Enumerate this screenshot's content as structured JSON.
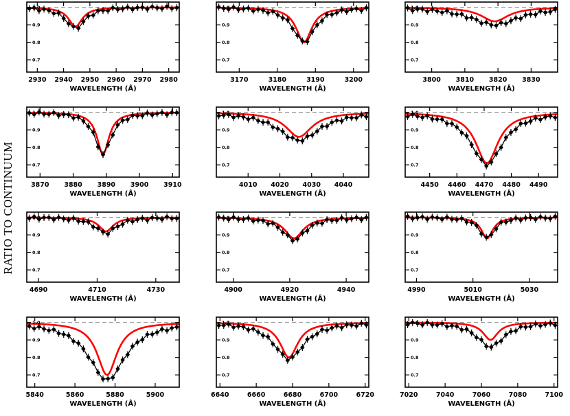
{
  "figure": {
    "ylabel": "RATIO TO CONTINUUM"
  },
  "chart_data": [
    {
      "type": "line",
      "xlabel": "WAVELENGTH (Å)",
      "xlim": [
        2926,
        2984
      ],
      "ylim": [
        0.63,
        1.03
      ],
      "xticks": [
        2930,
        2940,
        2950,
        2960,
        2970,
        2980
      ],
      "yticks": [
        0.7,
        0.8,
        0.9,
        1.0
      ],
      "ytick_labels": [
        "0.7",
        "0.8",
        "0.9",
        "1.0"
      ],
      "grid": false,
      "center": 2944.5,
      "model": {
        "depth": 0.11,
        "width": 3.2
      },
      "observed": {
        "depth": 0.12,
        "width": 4.5
      },
      "series": [
        {
          "color": "#000000",
          "style": "points"
        },
        {
          "color": "#ff0000",
          "style": "line"
        },
        {
          "color": "#888888",
          "style": "dashed",
          "y": 1.0
        }
      ]
    },
    {
      "type": "line",
      "xlabel": "WAVELENGTH (Å)",
      "xlim": [
        3164,
        3204
      ],
      "ylim": [
        0.63,
        1.03
      ],
      "xticks": [
        3170,
        3180,
        3190,
        3200
      ],
      "yticks": [
        0.7,
        0.8,
        0.9,
        1.0
      ],
      "ytick_labels": [
        "0.7",
        "0.8",
        "0.9",
        "1.0"
      ],
      "grid": false,
      "center": 3187,
      "model": {
        "depth": 0.2,
        "width": 2.5
      },
      "observed": {
        "depth": 0.2,
        "width": 3.5
      },
      "series": [
        {
          "color": "#000000",
          "style": "points"
        },
        {
          "color": "#ff0000",
          "style": "line"
        },
        {
          "color": "#888888",
          "style": "dashed",
          "y": 1.0
        }
      ]
    },
    {
      "type": "line",
      "xlabel": "WAVELENGTH (Å)",
      "xlim": [
        3792,
        3838
      ],
      "ylim": [
        0.63,
        1.03
      ],
      "xticks": [
        3800,
        3810,
        3820,
        3830
      ],
      "yticks": [
        0.7,
        0.8,
        0.9,
        1.0
      ],
      "ytick_labels": [
        "0.7",
        "0.8",
        "0.9",
        "1.0"
      ],
      "grid": false,
      "center": 3819,
      "model": {
        "depth": 0.08,
        "width": 5
      },
      "observed": {
        "depth": 0.1,
        "width": 9
      },
      "series": [
        {
          "color": "#000000",
          "style": "points"
        },
        {
          "color": "#ff0000",
          "style": "line"
        },
        {
          "color": "#888888",
          "style": "dashed",
          "y": 1.0
        }
      ]
    },
    {
      "type": "line",
      "xlabel": "WAVELENGTH (Å)",
      "xlim": [
        3866,
        3912
      ],
      "ylim": [
        0.63,
        1.03
      ],
      "xticks": [
        3870,
        3880,
        3890,
        3900,
        3910
      ],
      "yticks": [
        0.7,
        0.8,
        0.9,
        1.0
      ],
      "ytick_labels": [
        "0.7",
        "0.8",
        "0.9",
        "1.0"
      ],
      "grid": false,
      "center": 3889,
      "model": {
        "depth": 0.24,
        "width": 2.2
      },
      "observed": {
        "depth": 0.24,
        "width": 3
      },
      "series": [
        {
          "color": "#000000",
          "style": "points"
        },
        {
          "color": "#ff0000",
          "style": "line"
        },
        {
          "color": "#888888",
          "style": "dashed",
          "y": 1.0
        }
      ]
    },
    {
      "type": "line",
      "xlabel": "WAVELENGTH (Å)",
      "xlim": [
        4000,
        4048
      ],
      "ylim": [
        0.63,
        1.03
      ],
      "xticks": [
        4010,
        4020,
        4030,
        4040
      ],
      "yticks": [
        0.7,
        0.8,
        0.9,
        1.0
      ],
      "ytick_labels": [
        "0.7",
        "0.8",
        "0.9",
        "1.0"
      ],
      "grid": false,
      "center": 4026,
      "model": {
        "depth": 0.14,
        "width": 5
      },
      "observed": {
        "depth": 0.16,
        "width": 8
      },
      "series": [
        {
          "color": "#000000",
          "style": "points"
        },
        {
          "color": "#ff0000",
          "style": "line"
        },
        {
          "color": "#888888",
          "style": "dashed",
          "y": 1.0
        }
      ]
    },
    {
      "type": "line",
      "xlabel": "WAVELENGTH (Å)",
      "xlim": [
        4441,
        4497
      ],
      "ylim": [
        0.63,
        1.03
      ],
      "xticks": [
        4450,
        4460,
        4470,
        4480,
        4490
      ],
      "yticks": [
        0.7,
        0.8,
        0.9,
        1.0
      ],
      "ytick_labels": [
        "0.7",
        "0.8",
        "0.9",
        "1.0"
      ],
      "grid": false,
      "center": 4471,
      "model": {
        "depth": 0.29,
        "width": 5
      },
      "observed": {
        "depth": 0.3,
        "width": 7
      },
      "series": [
        {
          "color": "#000000",
          "style": "points"
        },
        {
          "color": "#ff0000",
          "style": "line"
        },
        {
          "color": "#888888",
          "style": "dashed",
          "y": 1.0
        }
      ]
    },
    {
      "type": "line",
      "xlabel": "WAVELENGTH (Å)",
      "xlim": [
        4686,
        4738
      ],
      "ylim": [
        0.63,
        1.03
      ],
      "xticks": [
        4690,
        4710,
        4730
      ],
      "yticks": [
        0.7,
        0.8,
        0.9,
        1.0
      ],
      "ytick_labels": [
        "0.7",
        "0.8",
        "0.9",
        "1.0"
      ],
      "grid": false,
      "center": 4713,
      "model": {
        "depth": 0.08,
        "width": 3
      },
      "observed": {
        "depth": 0.09,
        "width": 4.5
      },
      "series": [
        {
          "color": "#000000",
          "style": "points"
        },
        {
          "color": "#ff0000",
          "style": "line"
        },
        {
          "color": "#888888",
          "style": "dashed",
          "y": 1.0
        }
      ]
    },
    {
      "type": "line",
      "xlabel": "WAVELENGTH (Å)",
      "xlim": [
        4894,
        4948
      ],
      "ylim": [
        0.63,
        1.03
      ],
      "xticks": [
        4900,
        4920,
        4940
      ],
      "yticks": [
        0.7,
        0.8,
        0.9,
        1.0
      ],
      "ytick_labels": [
        "0.7",
        "0.8",
        "0.9",
        "1.0"
      ],
      "grid": false,
      "center": 4921.5,
      "model": {
        "depth": 0.12,
        "width": 4
      },
      "observed": {
        "depth": 0.13,
        "width": 5
      },
      "series": [
        {
          "color": "#000000",
          "style": "points"
        },
        {
          "color": "#ff0000",
          "style": "line"
        },
        {
          "color": "#888888",
          "style": "dashed",
          "y": 1.0
        }
      ]
    },
    {
      "type": "line",
      "xlabel": "WAVELENGTH (Å)",
      "xlim": [
        4986,
        5040
      ],
      "ylim": [
        0.63,
        1.03
      ],
      "xticks": [
        4990,
        5010,
        5030
      ],
      "yticks": [
        0.7,
        0.8,
        0.9,
        1.0
      ],
      "ytick_labels": [
        "0.7",
        "0.8",
        "0.9",
        "1.0"
      ],
      "grid": false,
      "center": 5015,
      "model": {
        "depth": 0.12,
        "width": 2.5
      },
      "observed": {
        "depth": 0.12,
        "width": 3.2
      },
      "series": [
        {
          "color": "#000000",
          "style": "points"
        },
        {
          "color": "#ff0000",
          "style": "line"
        },
        {
          "color": "#888888",
          "style": "dashed",
          "y": 1.0
        }
      ]
    },
    {
      "type": "line",
      "xlabel": "WAVELENGTH (Å)",
      "xlim": [
        5836,
        5912
      ],
      "ylim": [
        0.63,
        1.03
      ],
      "xticks": [
        5840,
        5860,
        5880,
        5900
      ],
      "yticks": [
        0.7,
        0.8,
        0.9,
        1.0
      ],
      "ytick_labels": [
        "0.7",
        "0.8",
        "0.9",
        "1.0"
      ],
      "grid": false,
      "center": 5876,
      "model": {
        "depth": 0.3,
        "width": 6
      },
      "observed": {
        "depth": 0.33,
        "width": 11
      },
      "series": [
        {
          "color": "#000000",
          "style": "points"
        },
        {
          "color": "#ff0000",
          "style": "line"
        },
        {
          "color": "#888888",
          "style": "dashed",
          "y": 1.0
        }
      ]
    },
    {
      "type": "line",
      "xlabel": "WAVELENGTH (Å)",
      "xlim": [
        6638,
        6722
      ],
      "ylim": [
        0.63,
        1.03
      ],
      "xticks": [
        6640,
        6660,
        6680,
        6700,
        6720
      ],
      "yticks": [
        0.7,
        0.8,
        0.9,
        1.0
      ],
      "ytick_labels": [
        "0.7",
        "0.8",
        "0.9",
        "1.0"
      ],
      "grid": false,
      "center": 6678,
      "model": {
        "depth": 0.2,
        "width": 6
      },
      "observed": {
        "depth": 0.21,
        "width": 10
      },
      "series": [
        {
          "color": "#000000",
          "style": "points"
        },
        {
          "color": "#ff0000",
          "style": "line"
        },
        {
          "color": "#888888",
          "style": "dashed",
          "y": 1.0
        }
      ]
    },
    {
      "type": "line",
      "xlabel": "WAVELENGTH (Å)",
      "xlim": [
        7018,
        7102
      ],
      "ylim": [
        0.63,
        1.03
      ],
      "xticks": [
        7020,
        7040,
        7060,
        7080,
        7100
      ],
      "yticks": [
        0.7,
        0.8,
        0.9,
        1.0
      ],
      "ytick_labels": [
        "0.7",
        "0.8",
        "0.9",
        "1.0"
      ],
      "grid": false,
      "center": 7065,
      "model": {
        "depth": 0.1,
        "width": 5
      },
      "observed": {
        "depth": 0.14,
        "width": 9
      },
      "series": [
        {
          "color": "#000000",
          "style": "points"
        },
        {
          "color": "#ff0000",
          "style": "line"
        },
        {
          "color": "#888888",
          "style": "dashed",
          "y": 1.0
        }
      ]
    }
  ]
}
